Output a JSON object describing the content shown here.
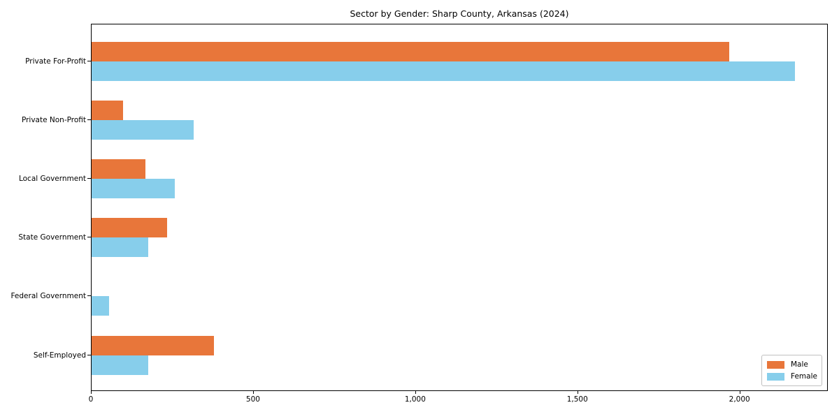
{
  "chart_data": {
    "type": "bar",
    "orientation": "horizontal",
    "title": "Sector by Gender: Sharp County, Arkansas (2024)",
    "categories": [
      "Private For-Profit",
      "Private Non-Profit",
      "Local Government",
      "State Government",
      "Federal Government",
      "Self-Employed"
    ],
    "series": [
      {
        "name": "Male",
        "color": "#e8763a",
        "values": [
          1966,
          97,
          165,
          232,
          0,
          377
        ]
      },
      {
        "name": "Female",
        "color": "#87ceeb",
        "values": [
          2168,
          315,
          256,
          175,
          54,
          175
        ]
      }
    ],
    "xlabel": "",
    "ylabel": "",
    "xlim": [
      0,
      2268
    ],
    "xticks": [
      0,
      500,
      1000,
      1500,
      2000
    ],
    "xtick_labels": [
      "0",
      "500",
      "1,000",
      "1,500",
      "2,000"
    ],
    "legend": {
      "position": "lower right",
      "entries": [
        "Male",
        "Female"
      ]
    },
    "grid": false,
    "background_color": "#ffffff",
    "spine_color": "#000000"
  }
}
